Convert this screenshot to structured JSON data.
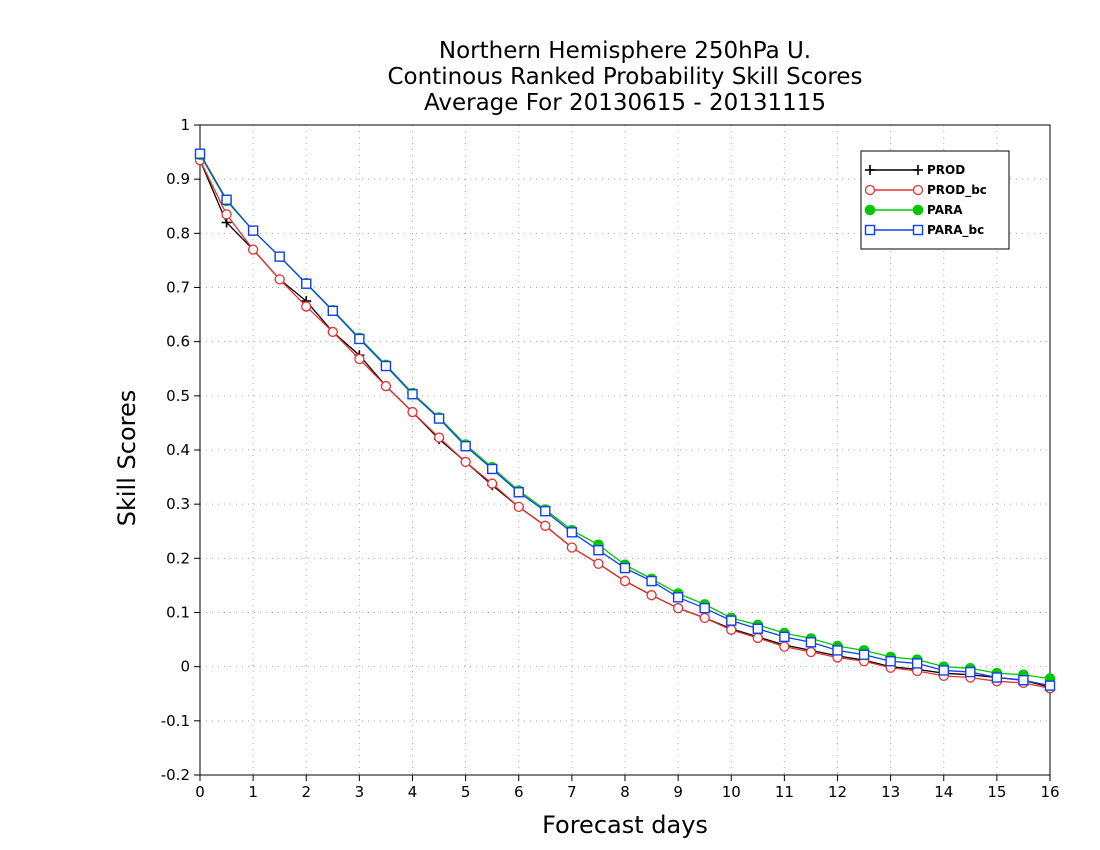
{
  "chart_data": {
    "type": "line",
    "title_lines": [
      "Northern Hemisphere 250hPa U.",
      "Continous Ranked Probability Skill Scores",
      "Average For 20130615 - 20131115"
    ],
    "xlabel": "Forecast days",
    "ylabel": "Skill Scores",
    "xlim": [
      0,
      16
    ],
    "ylim": [
      -0.2,
      1
    ],
    "xticks": [
      "0",
      "1",
      "2",
      "3",
      "4",
      "5",
      "6",
      "7",
      "8",
      "9",
      "10",
      "11",
      "12",
      "13",
      "14",
      "15",
      "16"
    ],
    "yticks": [
      "-0.2",
      "-0.1",
      "0",
      "0.1",
      "0.2",
      "0.3",
      "0.4",
      "0.5",
      "0.6",
      "0.7",
      "0.8",
      "0.9",
      "1"
    ],
    "grid": true,
    "legend_position": "top-right",
    "x": [
      0,
      0.5,
      1,
      1.5,
      2,
      2.5,
      3,
      3.5,
      4,
      4.5,
      5,
      5.5,
      6,
      6.5,
      7,
      7.5,
      8,
      8.5,
      9,
      9.5,
      10,
      10.5,
      11,
      11.5,
      12,
      12.5,
      13,
      13.5,
      14,
      14.5,
      15,
      15.5,
      16
    ],
    "series": [
      {
        "name": "PROD",
        "color": "#000000",
        "marker": "plus",
        "values": [
          0.935,
          0.82,
          0.77,
          0.715,
          0.675,
          0.618,
          0.575,
          0.518,
          0.47,
          0.42,
          0.378,
          0.335,
          0.295,
          0.26,
          0.22,
          0.19,
          0.158,
          0.132,
          0.108,
          0.09,
          0.07,
          0.055,
          0.04,
          0.03,
          0.02,
          0.012,
          0.0,
          -0.005,
          -0.012,
          -0.015,
          -0.02,
          -0.025,
          -0.038
        ]
      },
      {
        "name": "PROD_bc",
        "color": "#e83030",
        "marker": "circle",
        "values": [
          0.935,
          0.835,
          0.77,
          0.715,
          0.665,
          0.618,
          0.568,
          0.518,
          0.47,
          0.423,
          0.378,
          0.338,
          0.295,
          0.26,
          0.22,
          0.19,
          0.158,
          0.132,
          0.108,
          0.09,
          0.068,
          0.053,
          0.037,
          0.027,
          0.017,
          0.01,
          -0.002,
          -0.008,
          -0.017,
          -0.02,
          -0.027,
          -0.03,
          -0.04
        ]
      },
      {
        "name": "PARA",
        "color": "#00c800",
        "marker": "dot",
        "values": [
          0.945,
          0.86,
          0.805,
          0.757,
          0.708,
          0.658,
          0.607,
          0.557,
          0.505,
          0.46,
          0.41,
          0.368,
          0.325,
          0.29,
          0.252,
          0.225,
          0.188,
          0.162,
          0.135,
          0.115,
          0.09,
          0.077,
          0.062,
          0.052,
          0.038,
          0.03,
          0.018,
          0.013,
          0.0,
          -0.003,
          -0.012,
          -0.015,
          -0.022
        ]
      },
      {
        "name": "PARA_bc",
        "color": "#1040ee",
        "marker": "square",
        "values": [
          0.947,
          0.862,
          0.805,
          0.757,
          0.707,
          0.657,
          0.605,
          0.555,
          0.503,
          0.458,
          0.407,
          0.365,
          0.322,
          0.287,
          0.248,
          0.215,
          0.182,
          0.158,
          0.128,
          0.108,
          0.085,
          0.07,
          0.055,
          0.045,
          0.03,
          0.022,
          0.01,
          0.006,
          -0.007,
          -0.01,
          -0.02,
          -0.025,
          -0.035
        ]
      }
    ]
  }
}
